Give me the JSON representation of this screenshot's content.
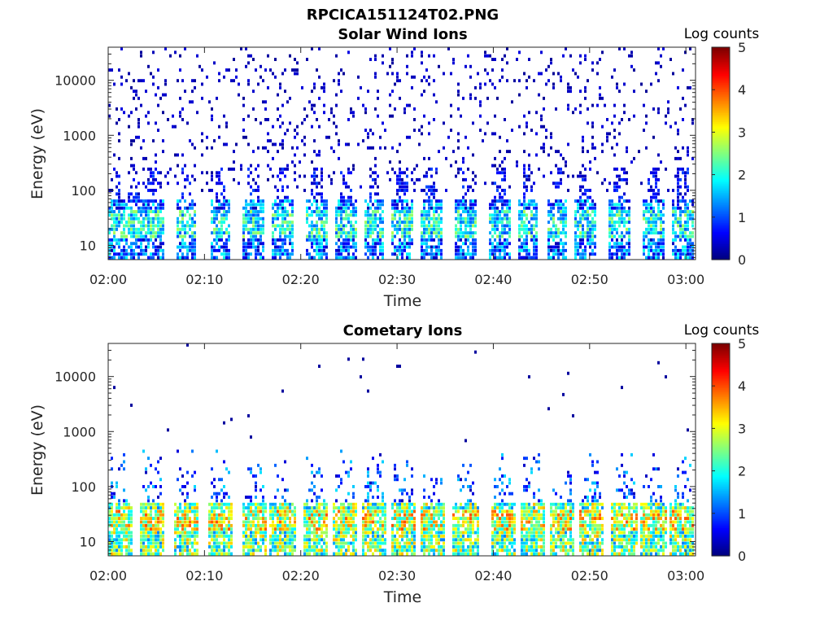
{
  "figure_title": "RPCICA151124T02.PNG",
  "colorbar": {
    "label": "Log counts",
    "ticks": [
      "0",
      "1",
      "2",
      "3",
      "4",
      "5"
    ],
    "range": [
      0,
      5
    ],
    "colormap": "jet"
  },
  "chart_data": [
    {
      "type": "heatmap",
      "title": "Solar Wind Ions",
      "xlabel": "Time",
      "ylabel": "Energy (eV)",
      "x_ticks": [
        "02:00",
        "02:10",
        "02:20",
        "02:30",
        "02:40",
        "02:50",
        "03:00"
      ],
      "y_ticks": [
        "10",
        "100",
        "1000",
        "10000"
      ],
      "y_scale": "log",
      "y_range": [
        5.5,
        40000
      ],
      "x_range": [
        "02:00",
        "03:01"
      ],
      "bursts_min": [
        0.5,
        2.5,
        4.5,
        8.0,
        11.5,
        15.0,
        18.0,
        21.5,
        24.5,
        27.5,
        30.5,
        33.5,
        37.0,
        40.5,
        43.5,
        46.5,
        49.5,
        53.0,
        56.5,
        59.5
      ]
    },
    {
      "type": "heatmap",
      "title": "Cometary Ions",
      "xlabel": "Time",
      "ylabel": "Energy (eV)",
      "x_ticks": [
        "02:00",
        "02:10",
        "02:20",
        "02:30",
        "02:40",
        "02:50",
        "03:00"
      ],
      "y_ticks": [
        "10",
        "100",
        "1000",
        "10000"
      ],
      "y_scale": "log",
      "y_range": [
        5.5,
        40000
      ],
      "x_range": [
        "02:00",
        "03:01"
      ],
      "bursts_min": [
        1.0,
        4.5,
        8.0,
        11.5,
        15.0,
        18.0,
        21.5,
        24.5,
        27.5,
        30.5,
        33.5,
        37.0,
        41.0,
        44.0,
        47.0,
        50.0,
        53.5,
        56.5,
        59.5
      ]
    }
  ]
}
